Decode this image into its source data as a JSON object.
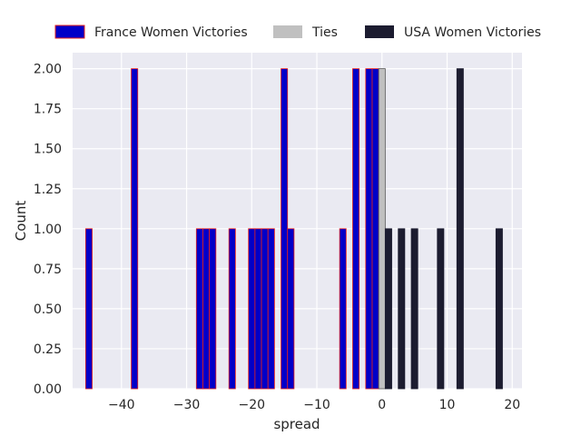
{
  "chart_data": {
    "type": "bar",
    "title": "",
    "xlabel": "spread",
    "ylabel": "Count",
    "xlim": [
      -47.5,
      21.5
    ],
    "ylim": [
      0,
      2.1
    ],
    "xticks": [
      -40,
      -30,
      -20,
      -10,
      0,
      10,
      20
    ],
    "xtick_labels": [
      "−40",
      "−30",
      "−20",
      "−10",
      "0",
      "10",
      "20"
    ],
    "yticks": [
      0,
      0.25,
      0.5,
      0.75,
      1.0,
      1.25,
      1.5,
      1.75,
      2.0
    ],
    "ytick_labels": [
      "0.00",
      "0.25",
      "0.50",
      "0.75",
      "1.00",
      "1.25",
      "1.50",
      "1.75",
      "2.00"
    ],
    "grid": true,
    "bar_width": 1,
    "legend_position": "top, outside, single row",
    "series": [
      {
        "name": "France Women Victories",
        "color": "#0000c8",
        "edge_color": "#e8201c",
        "bars": [
          {
            "x": -45,
            "count": 1
          },
          {
            "x": -38,
            "count": 2
          },
          {
            "x": -28,
            "count": 1
          },
          {
            "x": -27,
            "count": 1
          },
          {
            "x": -26,
            "count": 1
          },
          {
            "x": -23,
            "count": 1
          },
          {
            "x": -20,
            "count": 1
          },
          {
            "x": -19,
            "count": 1
          },
          {
            "x": -18,
            "count": 1
          },
          {
            "x": -17,
            "count": 1
          },
          {
            "x": -15,
            "count": 2
          },
          {
            "x": -14,
            "count": 1
          },
          {
            "x": -6,
            "count": 1
          },
          {
            "x": -4,
            "count": 2
          },
          {
            "x": -2,
            "count": 2
          },
          {
            "x": -1,
            "count": 2
          }
        ]
      },
      {
        "name": "Ties",
        "color": "#c0c0c0",
        "edge_color": "#555555",
        "bars": [
          {
            "x": 0,
            "count": 2
          }
        ]
      },
      {
        "name": "USA Women Victories",
        "color": "#1c1c30",
        "edge_color": "#1c1c30",
        "bars": [
          {
            "x": 1,
            "count": 1
          },
          {
            "x": 3,
            "count": 1
          },
          {
            "x": 5,
            "count": 1
          },
          {
            "x": 9,
            "count": 1
          },
          {
            "x": 12,
            "count": 2
          },
          {
            "x": 18,
            "count": 1
          }
        ]
      }
    ]
  }
}
